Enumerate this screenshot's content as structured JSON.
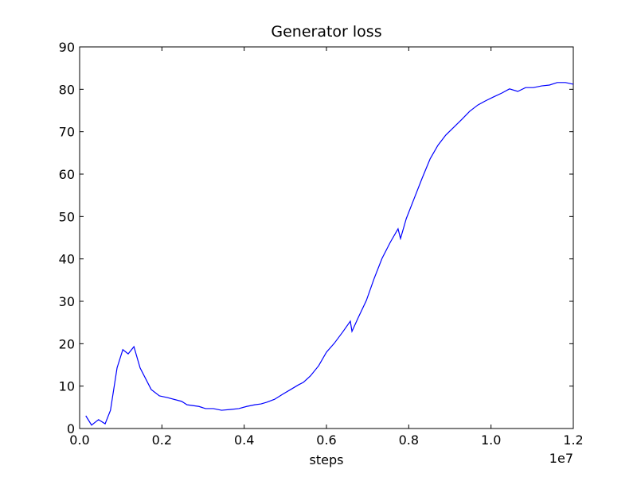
{
  "chart_data": {
    "type": "line",
    "title": "Generator loss",
    "x_label": "steps",
    "x_offset_label": "1e7",
    "x": [
      150000,
      290000,
      460000,
      620000,
      750000,
      910000,
      1050000,
      1180000,
      1320000,
      1470000,
      1740000,
      1940000,
      2130000,
      2480000,
      2610000,
      2900000,
      3060000,
      3250000,
      3450000,
      3680000,
      3870000,
      4060000,
      4260000,
      4410000,
      4550000,
      4740000,
      4940000,
      5130000,
      5320000,
      5440000,
      5610000,
      5810000,
      6000000,
      6190000,
      6390000,
      6580000,
      6620000,
      6770000,
      6970000,
      7160000,
      7350000,
      7550000,
      7740000,
      7800000,
      7940000,
      8130000,
      8320000,
      8520000,
      8710000,
      8900000,
      9100000,
      9290000,
      9480000,
      9680000,
      9870000,
      10060000,
      10260000,
      10450000,
      10650000,
      10840000,
      11030000,
      11230000,
      11420000,
      11610000,
      11810000,
      12000000
    ],
    "series": [
      {
        "color": "#0000ff",
        "values": [
          3.0,
          0.8,
          2.1,
          1.1,
          4.3,
          14.3,
          18.6,
          17.6,
          19.3,
          14.3,
          9.2,
          7.7,
          7.3,
          6.4,
          5.6,
          5.2,
          4.7,
          4.7,
          4.3,
          4.5,
          4.7,
          5.2,
          5.6,
          5.8,
          6.2,
          6.9,
          8.1,
          9.2,
          10.3,
          10.9,
          12.4,
          14.8,
          18.0,
          20.1,
          22.7,
          25.3,
          22.9,
          26.1,
          30.2,
          35.4,
          40.1,
          43.9,
          47.1,
          44.8,
          49.5,
          54.2,
          58.9,
          63.6,
          66.8,
          69.2,
          71.1,
          72.9,
          74.8,
          76.3,
          77.3,
          78.2,
          79.1,
          80.1,
          79.5,
          80.4,
          80.4,
          80.8,
          81.0,
          81.6,
          81.6,
          81.2
        ]
      }
    ],
    "xlim": [
      0,
      12000000
    ],
    "xticks": [
      {
        "value": 0,
        "label": "0.0"
      },
      {
        "value": 2000000,
        "label": "0.2"
      },
      {
        "value": 4000000,
        "label": "0.4"
      },
      {
        "value": 6000000,
        "label": "0.6"
      },
      {
        "value": 8000000,
        "label": "0.8"
      },
      {
        "value": 10000000,
        "label": "1.0"
      },
      {
        "value": 12000000,
        "label": "1.2"
      }
    ],
    "ylim": [
      0,
      90
    ],
    "yticks": [
      0,
      10,
      20,
      30,
      40,
      50,
      60,
      70,
      80,
      90
    ],
    "grid": false
  }
}
